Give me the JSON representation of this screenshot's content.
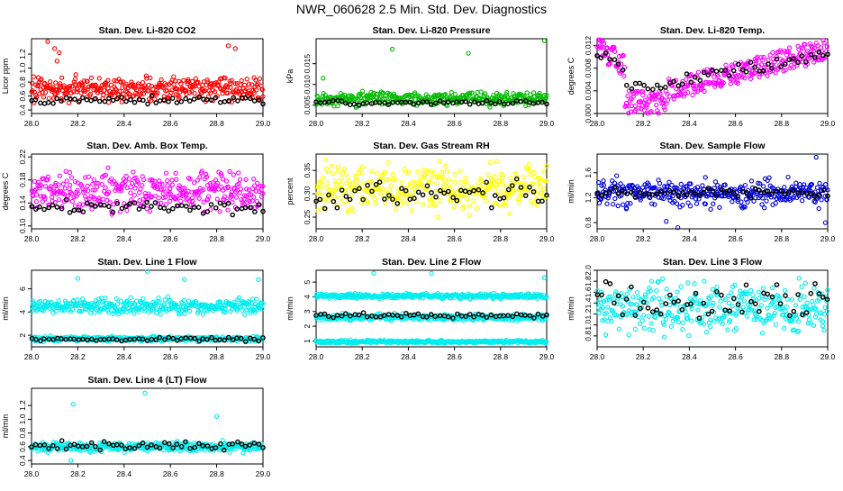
{
  "page": {
    "title": "NWR_060628  2.5 Min. Std. Dev. Diagnostics"
  },
  "chart_data": [
    {
      "type": "scatter",
      "title": "Stan. Dev. Li-820 CO2",
      "ylabel": "Licor ppm",
      "xlim": [
        28.0,
        29.0
      ],
      "ylim": [
        0.35,
        1.42
      ],
      "xticks": [
        "28.0",
        "28.2",
        "28.4",
        "28.6",
        "28.8",
        "29.0"
      ],
      "yticks": [
        "0.4",
        "0.6",
        "0.8",
        "1.0",
        "1.2"
      ],
      "grid": false,
      "series": [
        {
          "color": "#ff0000",
          "y_range": [
            0.45,
            0.95
          ],
          "outliers": [
            [
              28.07,
              1.38
            ],
            [
              28.1,
              1.28
            ],
            [
              28.12,
              1.22
            ],
            [
              28.11,
              1.1
            ],
            [
              28.85,
              1.32
            ],
            [
              28.88,
              1.28
            ]
          ]
        },
        {
          "color": "#000000",
          "y_range": [
            0.47,
            0.62
          ]
        }
      ]
    },
    {
      "type": "scatter",
      "title": "Stan. Dev. Li-820 Pressure",
      "ylabel": "kPa",
      "xlim": [
        28.0,
        29.0
      ],
      "ylim": [
        0.003,
        0.021
      ],
      "xticks": [
        "28.0",
        "28.2",
        "28.4",
        "28.6",
        "28.8",
        "29.0"
      ],
      "yticks": [
        "0.005",
        "0.010",
        "0.015"
      ],
      "grid": false,
      "series": [
        {
          "color": "#00bb00",
          "y_range": [
            0.004,
            0.009
          ],
          "outliers": [
            [
              28.33,
              0.0185
            ],
            [
              28.66,
              0.0175
            ],
            [
              28.99,
              0.0205
            ],
            [
              28.03,
              0.0115
            ]
          ]
        },
        {
          "color": "#000000",
          "y_range": [
            0.0048,
            0.0065
          ]
        }
      ]
    },
    {
      "type": "scatter",
      "title": "Stan. Dev. Li-820 Temp.",
      "ylabel": "degrees C",
      "xlim": [
        28.0,
        29.0
      ],
      "ylim": [
        0.0,
        0.0132
      ],
      "xticks": [
        "28.0",
        "28.2",
        "28.4",
        "28.6",
        "28.8",
        "29.0"
      ],
      "yticks": [
        "0.000",
        "0.004",
        "0.008",
        "0.012"
      ],
      "grid": false,
      "series": [
        {
          "color": "#ff00ff",
          "y_range": [
            0.0,
            0.013
          ]
        },
        {
          "color": "#000000",
          "y_range": [
            0.002,
            0.012
          ]
        }
      ]
    },
    {
      "type": "scatter",
      "title": "Stan. Dev. Amb. Box Temp.",
      "ylabel": "degrees C",
      "xlim": [
        28.0,
        29.0
      ],
      "ylim": [
        0.095,
        0.225
      ],
      "xticks": [
        "28.0",
        "28.2",
        "28.4",
        "28.6",
        "28.8",
        "29.0"
      ],
      "yticks": [
        "0.10",
        "0.14",
        "0.18",
        "0.22"
      ],
      "grid": false,
      "series": [
        {
          "color": "#ff00ff",
          "y_range": [
            0.11,
            0.21
          ]
        },
        {
          "color": "#000000",
          "y_range": [
            0.115,
            0.15
          ]
        }
      ]
    },
    {
      "type": "scatter",
      "title": "Stan. Dev. Gas Stream RH",
      "ylabel": "percent",
      "xlim": [
        28.0,
        29.0
      ],
      "ylim": [
        0.225,
        0.385
      ],
      "xticks": [
        "28.0",
        "28.2",
        "28.4",
        "28.6",
        "28.8",
        "29.0"
      ],
      "yticks": [
        "0.25",
        "0.30",
        "0.35"
      ],
      "grid": false,
      "series": [
        {
          "color": "#ffff00",
          "y_range": [
            0.24,
            0.38
          ]
        },
        {
          "color": "#000000",
          "y_range": [
            0.25,
            0.35
          ]
        }
      ]
    },
    {
      "type": "scatter",
      "title": "Stan. Dev. Sample Flow",
      "ylabel": "ml/min",
      "xlim": [
        28.0,
        29.0
      ],
      "ylim": [
        0.7,
        1.9
      ],
      "xticks": [
        "28.0",
        "28.2",
        "28.4",
        "28.6",
        "28.8",
        "29.0"
      ],
      "yticks": [
        "0.8",
        "1.2",
        "1.6"
      ],
      "grid": false,
      "series": [
        {
          "color": "#0000dd",
          "y_range": [
            0.95,
            1.6
          ],
          "outliers": [
            [
              28.35,
              0.72
            ],
            [
              28.99,
              0.8
            ],
            [
              28.95,
              1.85
            ],
            [
              28.3,
              0.82
            ]
          ]
        },
        {
          "color": "#000000",
          "y_range": [
            1.15,
            1.4
          ]
        }
      ]
    },
    {
      "type": "scatter",
      "title": "Stan. Dev. Line 1 Flow",
      "ylabel": "ml/min",
      "xlim": [
        28.0,
        29.0
      ],
      "ylim": [
        1.0,
        7.6
      ],
      "xticks": [
        "28.0",
        "28.2",
        "28.4",
        "28.6",
        "28.8",
        "29.0"
      ],
      "yticks": [
        "2",
        "4",
        "6"
      ],
      "grid": false,
      "series": [
        {
          "color": "#00eeee",
          "y_range": [
            3.6,
            5.4
          ],
          "outliers": [
            [
              28.2,
              6.9
            ],
            [
              28.5,
              7.5
            ],
            [
              28.66,
              6.8
            ],
            [
              28.98,
              6.8
            ]
          ]
        },
        {
          "color": "#00eeee",
          "y_range": [
            1.4,
            2.0
          ]
        },
        {
          "color": "#000000",
          "y_range": [
            1.4,
            1.9
          ]
        }
      ]
    },
    {
      "type": "scatter",
      "title": "Stan. Dev. Line 2 Flow",
      "ylabel": "ml/min",
      "xlim": [
        28.0,
        29.0
      ],
      "ylim": [
        0.6,
        5.8
      ],
      "xticks": [
        "28.0",
        "28.2",
        "28.4",
        "28.6",
        "28.8",
        "29.0"
      ],
      "yticks": [
        "1",
        "2",
        "3",
        "4",
        "5"
      ],
      "grid": false,
      "series": [
        {
          "color": "#00eeee",
          "y_range": [
            3.8,
            4.3
          ],
          "outliers": [
            [
              28.25,
              5.6
            ],
            [
              28.5,
              5.6
            ],
            [
              28.99,
              5.3
            ]
          ]
        },
        {
          "color": "#00eeee",
          "y_range": [
            2.3,
            2.9
          ]
        },
        {
          "color": "#00eeee",
          "y_range": [
            0.8,
            1.1
          ]
        },
        {
          "color": "#000000",
          "y_range": [
            2.5,
            3.0
          ]
        }
      ]
    },
    {
      "type": "scatter",
      "title": "Stan. Dev. Line 3 Flow",
      "ylabel": "ml/min",
      "xlim": [
        28.0,
        29.0
      ],
      "ylim": [
        0.6,
        2.0
      ],
      "xticks": [
        "28.0",
        "28.2",
        "28.4",
        "28.6",
        "28.8",
        "29.0"
      ],
      "yticks": [
        "0.8",
        "1.0",
        "1.2",
        "1.4",
        "1.6",
        "1.8",
        "2.0"
      ],
      "grid": false,
      "series": [
        {
          "color": "#00eeee",
          "y_range": [
            0.7,
            1.95
          ]
        },
        {
          "color": "#000000",
          "y_range": [
            1.0,
            1.95
          ]
        }
      ]
    },
    {
      "type": "scatter",
      "title": "Stan. Dev. Line 4 (LT) Flow",
      "ylabel": "ml/min",
      "xlim": [
        28.0,
        29.0
      ],
      "ylim": [
        0.35,
        1.45
      ],
      "xticks": [
        "28.0",
        "28.2",
        "28.4",
        "28.6",
        "28.8",
        "29.0"
      ],
      "yticks": [
        "0.4",
        "0.6",
        "0.8",
        "1.0",
        "1.2"
      ],
      "grid": false,
      "series": [
        {
          "color": "#00eeee",
          "y_range": [
            0.5,
            0.7
          ],
          "outliers": [
            [
              28.18,
              1.22
            ],
            [
              28.49,
              1.38
            ],
            [
              28.8,
              1.04
            ],
            [
              28.17,
              0.4
            ]
          ]
        },
        {
          "color": "#000000",
          "y_range": [
            0.52,
            0.72
          ]
        }
      ]
    }
  ]
}
